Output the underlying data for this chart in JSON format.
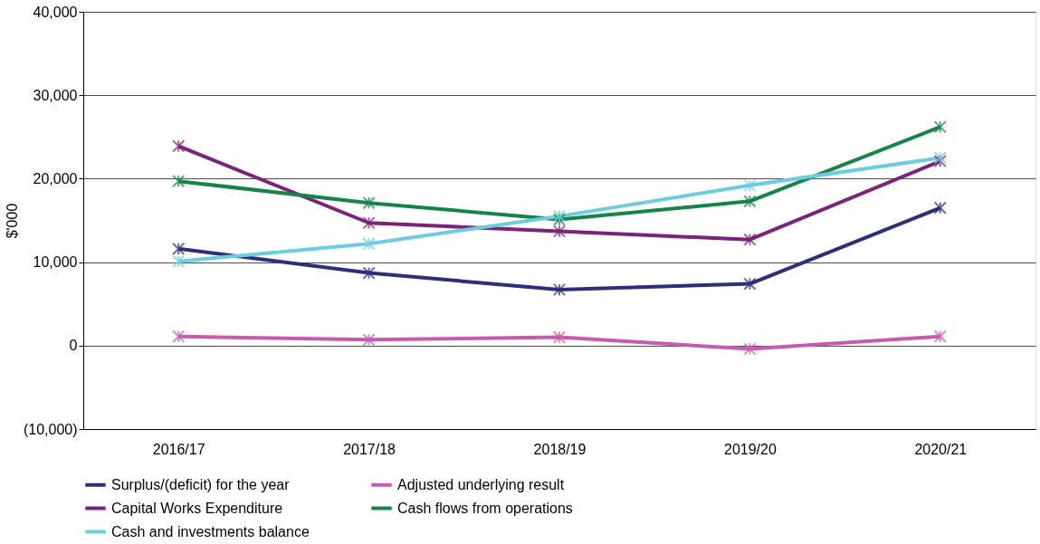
{
  "chart_data": {
    "type": "line",
    "ylabel": "$'000",
    "categories": [
      "2016/17",
      "2017/18",
      "2018/19",
      "2019/20",
      "2020/21"
    ],
    "series": [
      {
        "name": "Surplus/(deficit) for the year",
        "color": "#2e2f7a",
        "values": [
          11600,
          8700,
          6700,
          7400,
          16500
        ]
      },
      {
        "name": "Adjusted underlying result",
        "color": "#c85bb0",
        "values": [
          1100,
          700,
          1000,
          -400,
          1100
        ]
      },
      {
        "name": "Capital Works Expenditure",
        "color": "#7b2378",
        "values": [
          23900,
          14700,
          13700,
          12700,
          22100
        ]
      },
      {
        "name": "Cash flows from operations",
        "color": "#16834a",
        "values": [
          19700,
          17100,
          15100,
          17300,
          26200
        ]
      },
      {
        "name": "Cash and investments balance",
        "color": "#6ccde0",
        "values": [
          10100,
          12200,
          15500,
          19200,
          22500
        ]
      }
    ],
    "ylim": [
      -10000,
      40000
    ],
    "yticks": [
      {
        "value": -10000,
        "label": "(10,000)"
      },
      {
        "value": 0,
        "label": "0"
      },
      {
        "value": 10000,
        "label": "10,000"
      },
      {
        "value": 20000,
        "label": "20,000"
      },
      {
        "value": 30000,
        "label": "30,000"
      },
      {
        "value": 40000,
        "label": "40,000"
      }
    ],
    "grid": "y",
    "legend": "bottom",
    "marker": "cross",
    "line_style": "solid"
  }
}
